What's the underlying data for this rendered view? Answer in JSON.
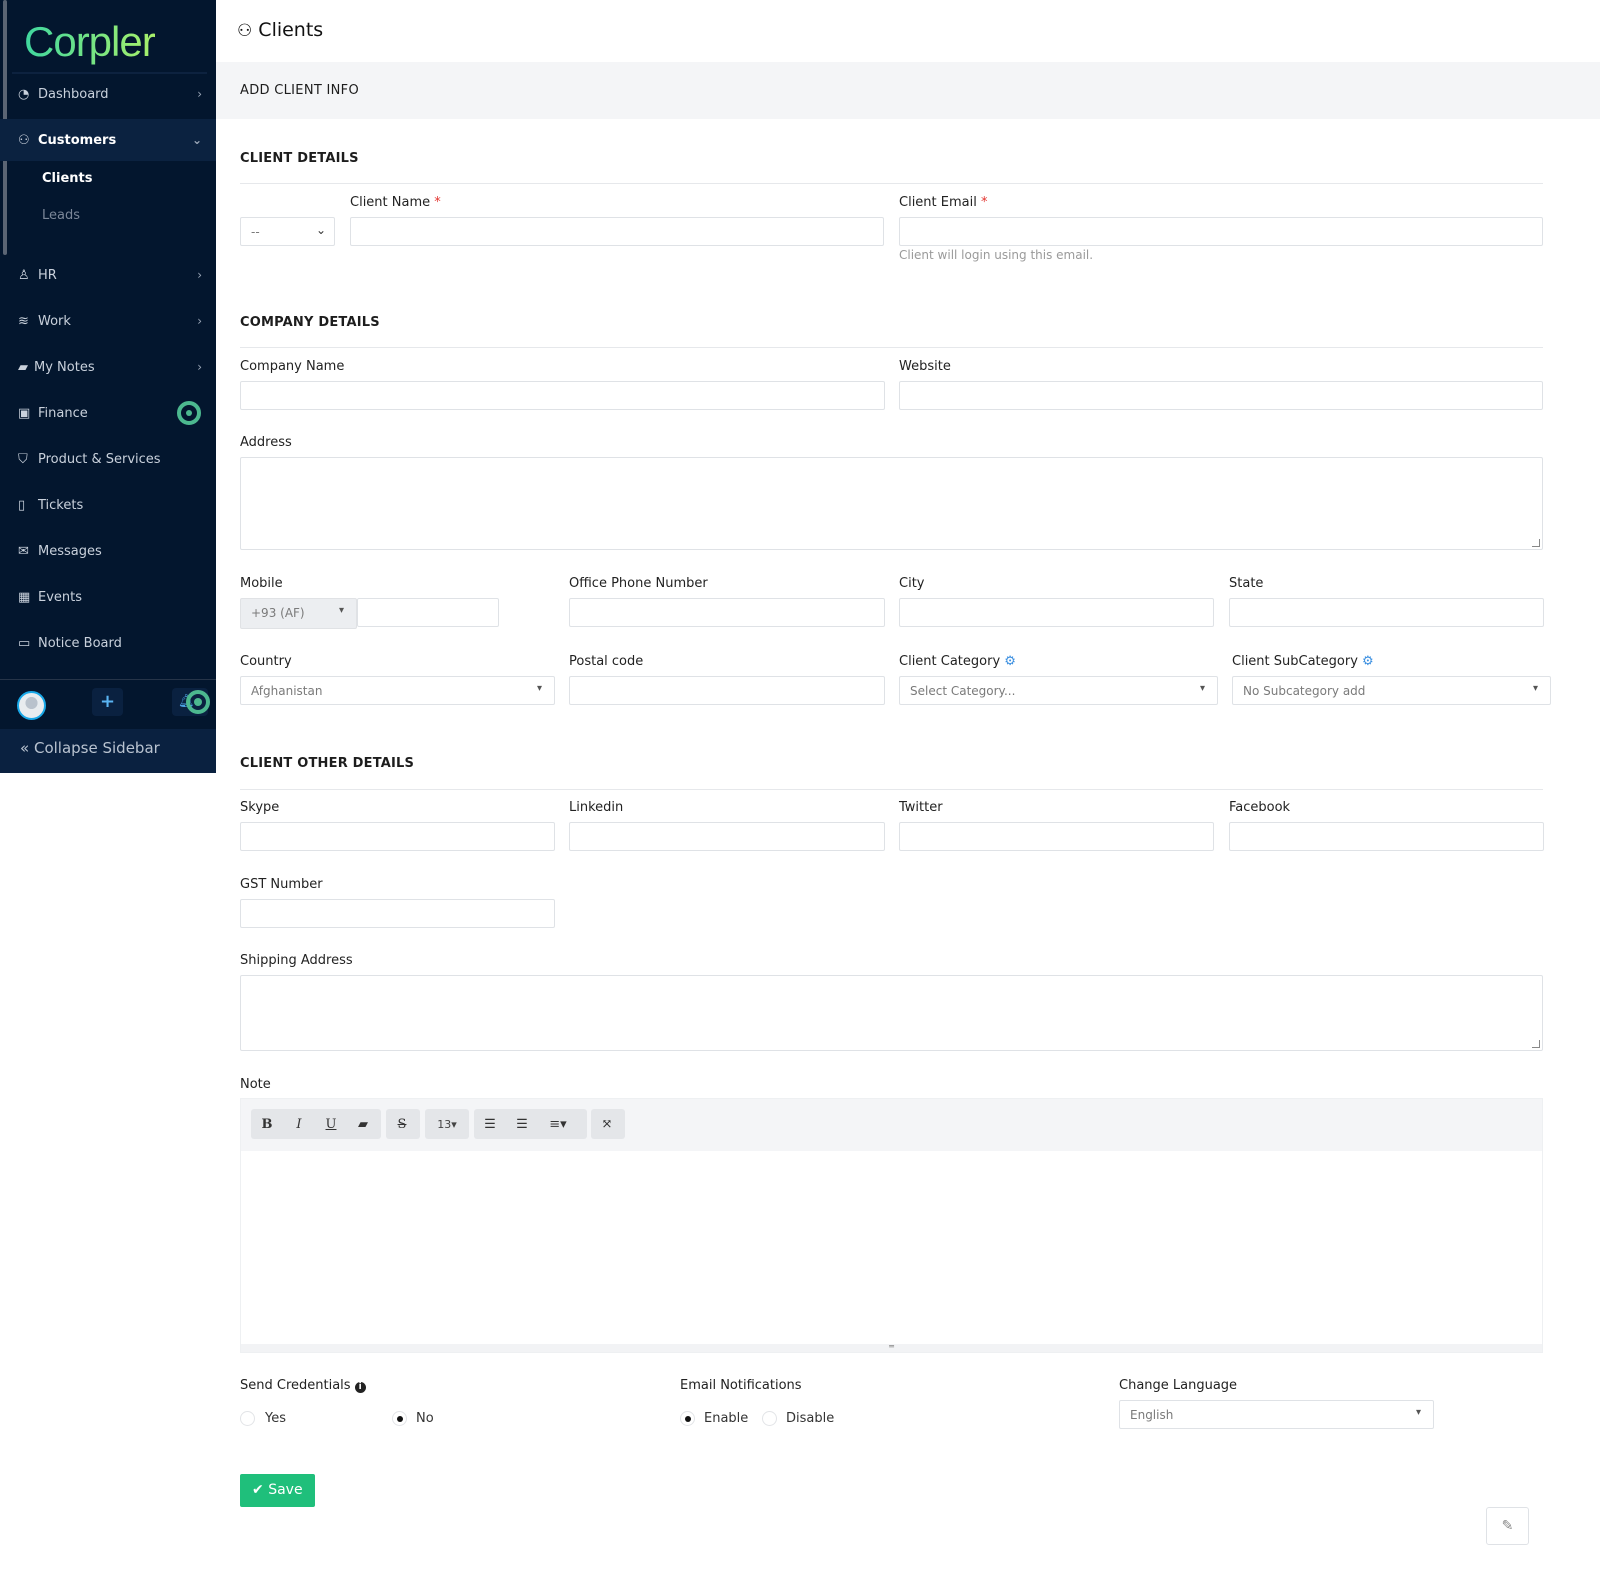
{
  "brand": {
    "logo_text": "Corpler"
  },
  "sidebar": {
    "items": [
      {
        "label": "Dashboard",
        "icon": "dashboard-icon"
      },
      {
        "label": "Customers",
        "icon": "customers-icon"
      },
      {
        "label": "HR",
        "icon": "user-icon"
      },
      {
        "label": "Work",
        "icon": "layers-icon"
      },
      {
        "label": "My Notes",
        "icon": "book-icon"
      },
      {
        "label": "Finance",
        "icon": "money-icon"
      },
      {
        "label": "Product & Services",
        "icon": "cart-icon"
      },
      {
        "label": "Tickets",
        "icon": "ticket-icon"
      },
      {
        "label": "Messages",
        "icon": "envelope-icon"
      },
      {
        "label": "Events",
        "icon": "calendar-icon"
      },
      {
        "label": "Notice Board",
        "icon": "monitor-icon"
      }
    ],
    "subitems": [
      {
        "label": "Clients"
      },
      {
        "label": "Leads"
      }
    ],
    "collapse_label": "Collapse Sidebar",
    "plus_label": "+"
  },
  "page": {
    "title": "Clients",
    "band": "ADD CLIENT INFO"
  },
  "client_details": {
    "heading": "CLIENT DETAILS",
    "salutation": "--",
    "client_name_label": "Client Name",
    "client_email_label": "Client Email",
    "required": "*",
    "email_help": "Client will login using this email."
  },
  "company_details": {
    "heading": "COMPANY DETAILS",
    "company_name_label": "Company Name",
    "website_label": "Website",
    "address_label": "Address",
    "mobile_label": "Mobile",
    "mobile_code": "+93 (AF)",
    "office_phone_label": "Office Phone Number",
    "city_label": "City",
    "state_label": "State",
    "country_label": "Country",
    "country_value": "Afghanistan",
    "postal_label": "Postal code",
    "category_label": "Client Category",
    "category_placeholder": "Select Category...",
    "subcategory_label": "Client SubCategory",
    "subcategory_value": "No Subcategory add"
  },
  "other_details": {
    "heading": "CLIENT OTHER DETAILS",
    "skype_label": "Skype",
    "linkedin_label": "Linkedin",
    "twitter_label": "Twitter",
    "facebook_label": "Facebook",
    "gst_label": "GST Number",
    "shipping_label": "Shipping Address",
    "note_label": "Note",
    "font_size": "13"
  },
  "settings": {
    "send_credentials_label": "Send Credentials",
    "yes": "Yes",
    "no": "No",
    "send_credentials_value": "No",
    "email_notifications_label": "Email Notifications",
    "enable": "Enable",
    "disable": "Disable",
    "email_notifications_value": "Enable",
    "language_label": "Change Language",
    "language_value": "English"
  },
  "actions": {
    "save_label": "Save"
  },
  "colors": {
    "sidebar": "#03162e",
    "accent": "#1fbf7b",
    "required": "#e3342f",
    "brand_green": "#4cb88f"
  }
}
